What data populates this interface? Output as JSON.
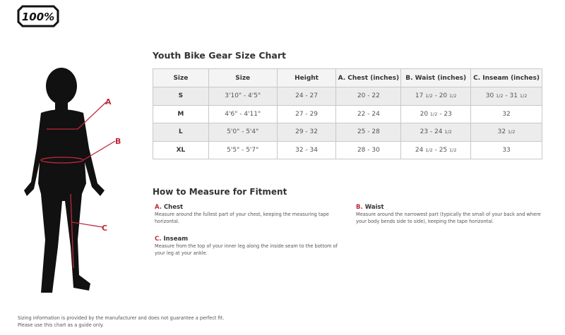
{
  "logo_text": "100%",
  "figure_labels": {
    "a": "A",
    "b": "B",
    "c": "C"
  },
  "title": "Youth Bike Gear Size Chart",
  "table": {
    "headers": [
      "Size",
      "Size",
      "Height",
      "A. Chest (inches)",
      "B. Waist (inches)",
      "C. Inseam (inches)"
    ],
    "rows": [
      {
        "size": "S",
        "height_ft": "3'10\" - 4'5\"",
        "height": "24 - 27",
        "chest": "20 - 22",
        "waist": [
          "17",
          "1/2",
          " - 20",
          "1/2"
        ],
        "inseam": [
          "30",
          "1/2",
          " - 31",
          "1/2"
        ]
      },
      {
        "size": "M",
        "height_ft": "4'6\" - 4'11\"",
        "height": "27 - 29",
        "chest": "22 - 24",
        "waist": [
          "20",
          "1/2",
          " - 23",
          ""
        ],
        "inseam": [
          "32",
          "",
          "",
          ""
        ]
      },
      {
        "size": "L",
        "height_ft": "5'0\" - 5'4\"",
        "height": "29 - 32",
        "chest": "25 - 28",
        "waist": [
          "23 - 24",
          "1/2",
          "",
          ""
        ],
        "inseam": [
          "32",
          "1/2",
          "",
          ""
        ]
      },
      {
        "size": "XL",
        "height_ft": "5'5\" - 5'7\"",
        "height": "32 - 34",
        "chest": "28 - 30",
        "waist": [
          "24",
          "1/2",
          " - 25",
          "1/2"
        ],
        "inseam": [
          "33",
          "",
          "",
          ""
        ]
      }
    ]
  },
  "measure": {
    "title": "How to Measure for Fitment",
    "items": [
      {
        "letter": "A.",
        "name": "Chest",
        "text": "Measure around the fullest part of your chest, keeping the measuring tape horizontal."
      },
      {
        "letter": "B.",
        "name": "Waist",
        "text": "Measure around the narrowest part (typically the small of your back and where your body bends side to side), keeping the tape horizontal."
      },
      {
        "letter": "C.",
        "name": "Inseam",
        "text": "Measure from the top of your inner leg along the inside seam to the bottom of your leg at your ankle."
      }
    ]
  },
  "footer": [
    "Sizing information is provided by the manufacturer and does not guarantee a perfect fit.",
    "Please use this chart as a guide only."
  ],
  "colors": {
    "accent": "#c0283a",
    "header_bg": "#f4f4f4",
    "alt_row_bg": "#ececec",
    "border": "#c8c8c8"
  }
}
